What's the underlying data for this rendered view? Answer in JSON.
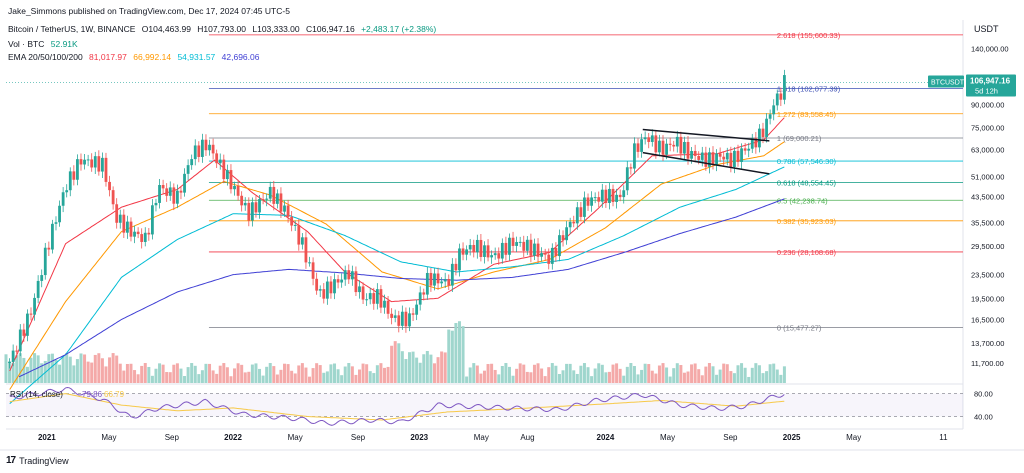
{
  "header": {
    "attribution": "Jake_Simmons published on TradingView.com, Dec 17, 2024 07:45 UTC-5",
    "symbol_line": "Bitcoin / TetherUS, 1W, BINANCE",
    "ohlc": {
      "o": "O104,463.99",
      "h": "H107,793.00",
      "l": "L103,333.00",
      "c": "C106,947.16",
      "chg": "+2,483.17 (+2.38%)"
    },
    "vol_label": "Vol · BTC",
    "vol_value": "52.91K",
    "ema_label": "EMA 20/50/100/200",
    "ema_values": [
      "81,017.97",
      "66,992.14",
      "54,931.57",
      "42,696.06"
    ]
  },
  "footer": {
    "brand": "TradingView"
  },
  "colors": {
    "up": "#26a69a",
    "down": "#ef5350",
    "ema20": "#f23645",
    "ema50": "#ff9800",
    "ema100": "#00bcd4",
    "ema200": "#3f3fd4",
    "fib": "#787b86",
    "rsi": "#7e57c2",
    "price_tag": "#26a69a",
    "current_line": "#26a69a"
  },
  "chart_data": {
    "type": "candlestick",
    "scale": "log",
    "currency": "USDT",
    "x_tick_labels": [
      "2021",
      "May",
      "Sep",
      "2022",
      "May",
      "Sep",
      "2023",
      "May",
      "Aug",
      "2024",
      "May",
      "Sep",
      "2025",
      "May",
      "11"
    ],
    "y_tick_labels": [
      "140,000.00",
      "90,000.00",
      "75,000.00",
      "63,000.00",
      "51,000.00",
      "43,500.00",
      "35,500.00",
      "29,500.00",
      "23,500.00",
      "19,500.00",
      "16,500.00",
      "13,700.00",
      "11,700.00"
    ],
    "y_ticks": [
      140000,
      90000,
      75000,
      63000,
      51000,
      43500,
      35500,
      29500,
      23500,
      19500,
      16500,
      13700,
      11700
    ],
    "price_tag": {
      "symbol": "BTCUSDT",
      "price": "106,947.16",
      "countdown": "5d 12h",
      "value": 106947.16
    },
    "fib_levels": [
      {
        "label": "2.618 (155,600.33)",
        "value": 155600.33,
        "color": "#f23645"
      },
      {
        "label": "1.618 (102,077.39)",
        "value": 102077.39,
        "color": "#3f51b5"
      },
      {
        "label": "1.272 (83,558.45)",
        "value": 83558.45,
        "color": "#ff9800"
      },
      {
        "label": "1 (69,000.21)",
        "value": 69000.21,
        "color": "#787b86"
      },
      {
        "label": "0.786 (57,546.30)",
        "value": 57546.3,
        "color": "#00bcd4"
      },
      {
        "label": "0.618 (48,554.45)",
        "value": 48554.45,
        "color": "#089981"
      },
      {
        "label": "0.5 (42,238.74)",
        "value": 42238.74,
        "color": "#4caf50"
      },
      {
        "label": "0.382 (35,923.03)",
        "value": 35923.03,
        "color": "#ff9800"
      },
      {
        "label": "0.236 (28,108.68)",
        "value": 28108.68,
        "color": "#f23645"
      },
      {
        "label": "0 (15,477.27)",
        "value": 15477.27,
        "color": "#787b86"
      }
    ],
    "price_path": [
      [
        2020.8,
        11800
      ],
      [
        2020.92,
        18000
      ],
      [
        2021.0,
        29000
      ],
      [
        2021.1,
        47000
      ],
      [
        2021.18,
        58000
      ],
      [
        2021.3,
        56000
      ],
      [
        2021.37,
        37000
      ],
      [
        2021.45,
        33000
      ],
      [
        2021.53,
        31000
      ],
      [
        2021.6,
        47000
      ],
      [
        2021.7,
        43000
      ],
      [
        2021.78,
        61000
      ],
      [
        2021.86,
        66000
      ],
      [
        2021.92,
        57000
      ],
      [
        2022.0,
        47000
      ],
      [
        2022.08,
        38000
      ],
      [
        2022.2,
        45000
      ],
      [
        2022.28,
        39000
      ],
      [
        2022.37,
        30000
      ],
      [
        2022.46,
        20000
      ],
      [
        2022.55,
        22000
      ],
      [
        2022.62,
        24000
      ],
      [
        2022.7,
        19500
      ],
      [
        2022.78,
        19800
      ],
      [
        2022.86,
        16500
      ],
      [
        2022.95,
        16600
      ],
      [
        2023.05,
        23000
      ],
      [
        2023.15,
        22000
      ],
      [
        2023.22,
        28000
      ],
      [
        2023.3,
        29500
      ],
      [
        2023.4,
        27000
      ],
      [
        2023.5,
        30500
      ],
      [
        2023.6,
        29000
      ],
      [
        2023.7,
        26500
      ],
      [
        2023.8,
        34500
      ],
      [
        2023.9,
        42000
      ],
      [
        2024.0,
        44000
      ],
      [
        2024.08,
        43000
      ],
      [
        2024.15,
        62000
      ],
      [
        2024.22,
        70000
      ],
      [
        2024.3,
        63000
      ],
      [
        2024.38,
        67000
      ],
      [
        2024.45,
        61000
      ],
      [
        2024.55,
        58000
      ],
      [
        2024.62,
        60000
      ],
      [
        2024.68,
        58000
      ],
      [
        2024.75,
        63000
      ],
      [
        2024.82,
        69000
      ],
      [
        2024.86,
        76000
      ],
      [
        2024.9,
        90000
      ],
      [
        2024.94,
        98000
      ],
      [
        2024.96,
        106947
      ]
    ],
    "ema_paths": [
      {
        "name": "EMA 20",
        "points": [
          [
            2020.8,
            11000
          ],
          [
            2021.1,
            30000
          ],
          [
            2021.4,
            40000
          ],
          [
            2021.7,
            46000
          ],
          [
            2021.9,
            58000
          ],
          [
            2022.1,
            45000
          ],
          [
            2022.4,
            33000
          ],
          [
            2022.6,
            24000
          ],
          [
            2022.85,
            19000
          ],
          [
            2023.1,
            19500
          ],
          [
            2023.4,
            25500
          ],
          [
            2023.7,
            28000
          ],
          [
            2023.95,
            39000
          ],
          [
            2024.25,
            60000
          ],
          [
            2024.6,
            61000
          ],
          [
            2024.85,
            68000
          ],
          [
            2024.96,
            81018
          ]
        ]
      },
      {
        "name": "EMA 50",
        "points": [
          [
            2020.8,
            9500
          ],
          [
            2021.1,
            19000
          ],
          [
            2021.4,
            33000
          ],
          [
            2021.7,
            40000
          ],
          [
            2021.95,
            49000
          ],
          [
            2022.2,
            44000
          ],
          [
            2022.5,
            35000
          ],
          [
            2022.8,
            24000
          ],
          [
            2023.1,
            21000
          ],
          [
            2023.4,
            24000
          ],
          [
            2023.7,
            26500
          ],
          [
            2024.0,
            34000
          ],
          [
            2024.3,
            48000
          ],
          [
            2024.6,
            56000
          ],
          [
            2024.85,
            60000
          ],
          [
            2024.96,
            66992
          ]
        ]
      },
      {
        "name": "EMA 100",
        "points": [
          [
            2020.8,
            8500
          ],
          [
            2021.1,
            12500
          ],
          [
            2021.4,
            23000
          ],
          [
            2021.7,
            31000
          ],
          [
            2022.0,
            38000
          ],
          [
            2022.3,
            37500
          ],
          [
            2022.6,
            32000
          ],
          [
            2022.9,
            26000
          ],
          [
            2023.2,
            24000
          ],
          [
            2023.5,
            25000
          ],
          [
            2023.8,
            26500
          ],
          [
            2024.1,
            32000
          ],
          [
            2024.4,
            40000
          ],
          [
            2024.7,
            46000
          ],
          [
            2024.96,
            54932
          ]
        ]
      },
      {
        "name": "EMA 200",
        "points": [
          [
            2020.85,
            10500
          ],
          [
            2021.1,
            12500
          ],
          [
            2021.4,
            16500
          ],
          [
            2021.7,
            20500
          ],
          [
            2022.0,
            23500
          ],
          [
            2022.3,
            24500
          ],
          [
            2022.6,
            23800
          ],
          [
            2022.9,
            22800
          ],
          [
            2023.2,
            22500
          ],
          [
            2023.5,
            23000
          ],
          [
            2023.8,
            24500
          ],
          [
            2024.1,
            28000
          ],
          [
            2024.4,
            32500
          ],
          [
            2024.7,
            37000
          ],
          [
            2024.96,
            42696
          ]
        ]
      }
    ],
    "channel_lines": [
      {
        "from": [
          2024.2,
          73800
        ],
        "to": [
          2024.88,
          67500
        ]
      },
      {
        "from": [
          2024.2,
          61500
        ],
        "to": [
          2024.88,
          52000
        ]
      }
    ],
    "rsi": {
      "label": "RSI (14, close)",
      "value": "79.86",
      "ma_value": "66.79",
      "y_tick_labels": [
        "80.00",
        "40.00"
      ],
      "y_ticks": [
        80,
        40
      ],
      "path": [
        [
          2020.8,
          72
        ],
        [
          2021.1,
          88
        ],
        [
          2021.3,
          70
        ],
        [
          2021.45,
          38
        ],
        [
          2021.6,
          55
        ],
        [
          2021.85,
          66
        ],
        [
          2022.05,
          44
        ],
        [
          2022.35,
          36
        ],
        [
          2022.5,
          28
        ],
        [
          2022.75,
          34
        ],
        [
          2022.9,
          30
        ],
        [
          2023.1,
          60
        ],
        [
          2023.25,
          58
        ],
        [
          2023.55,
          54
        ],
        [
          2023.75,
          52
        ],
        [
          2023.95,
          68
        ],
        [
          2024.2,
          78
        ],
        [
          2024.4,
          60
        ],
        [
          2024.6,
          54
        ],
        [
          2024.75,
          58
        ],
        [
          2024.88,
          72
        ],
        [
          2024.96,
          79.86
        ]
      ],
      "ma_path": [
        [
          2020.8,
          66
        ],
        [
          2021.1,
          80
        ],
        [
          2021.4,
          60
        ],
        [
          2021.7,
          50
        ],
        [
          2022.0,
          55
        ],
        [
          2022.4,
          40
        ],
        [
          2022.8,
          34
        ],
        [
          2023.15,
          48
        ],
        [
          2023.6,
          55
        ],
        [
          2024.0,
          62
        ],
        [
          2024.3,
          68
        ],
        [
          2024.7,
          58
        ],
        [
          2024.96,
          66.79
        ]
      ]
    }
  }
}
